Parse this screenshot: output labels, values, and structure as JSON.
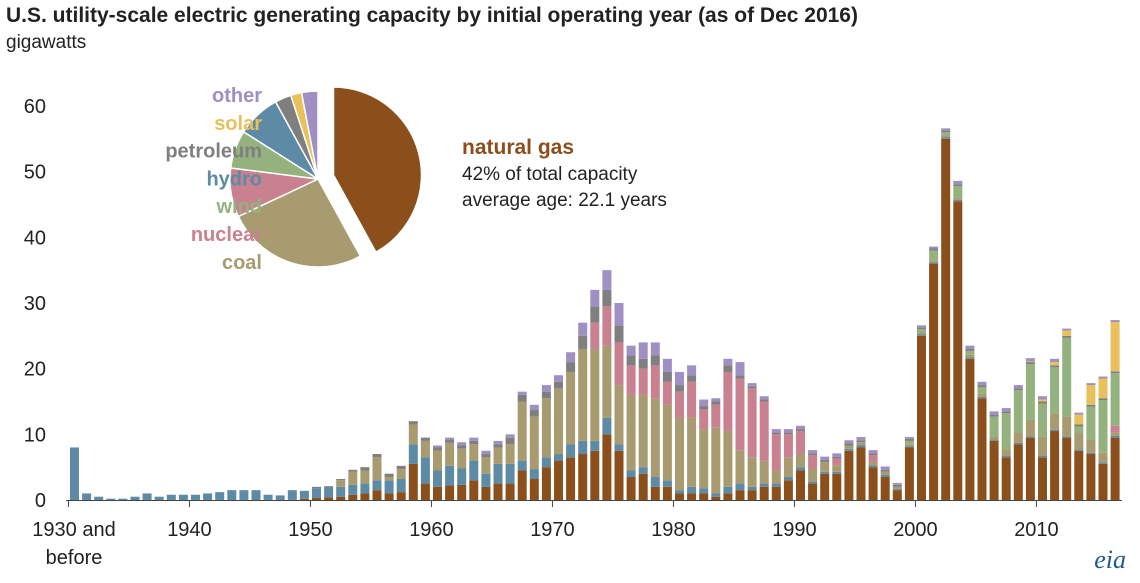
{
  "chart_data": {
    "type": "bar",
    "stacked": true,
    "title": "U.S. utility-scale electric generating capacity by initial operating year (as of Dec 2016)",
    "ylabel": "gigawatts",
    "ylim": [
      0,
      60
    ],
    "yticks": [
      0,
      10,
      20,
      30,
      40,
      50,
      60
    ],
    "xtick_labels": [
      {
        "year": 1930,
        "lines": [
          "1930 and",
          "before"
        ]
      },
      {
        "year": 1940,
        "lines": [
          "1940"
        ]
      },
      {
        "year": 1950,
        "lines": [
          "1950"
        ]
      },
      {
        "year": 1960,
        "lines": [
          "1960"
        ]
      },
      {
        "year": 1970,
        "lines": [
          "1970"
        ]
      },
      {
        "year": 1980,
        "lines": [
          "1980"
        ]
      },
      {
        "year": 1990,
        "lines": [
          "1990"
        ]
      },
      {
        "year": 2000,
        "lines": [
          "2000"
        ]
      },
      {
        "year": 2010,
        "lines": [
          "2010"
        ]
      }
    ],
    "grid": false,
    "colors": {
      "natural gas": "#8b4f1c",
      "coal": "#a89b6f",
      "nuclear": "#c9808f",
      "wind": "#93b27e",
      "hydro": "#5d8aa5",
      "petroleum": "#7f7f7f",
      "solar": "#e8c15c",
      "other": "#a08fc3"
    },
    "series_order": [
      "natural gas",
      "hydro",
      "coal",
      "nuclear",
      "wind",
      "petroleum",
      "solar",
      "other"
    ],
    "years": [
      1930,
      1931,
      1932,
      1933,
      1934,
      1935,
      1936,
      1937,
      1938,
      1939,
      1940,
      1941,
      1942,
      1943,
      1944,
      1945,
      1946,
      1947,
      1948,
      1949,
      1950,
      1951,
      1952,
      1953,
      1954,
      1955,
      1956,
      1957,
      1958,
      1959,
      1960,
      1961,
      1962,
      1963,
      1964,
      1965,
      1966,
      1967,
      1968,
      1969,
      1970,
      1971,
      1972,
      1973,
      1974,
      1975,
      1976,
      1977,
      1978,
      1979,
      1980,
      1981,
      1982,
      1983,
      1984,
      1985,
      1986,
      1987,
      1988,
      1989,
      1990,
      1991,
      1992,
      1993,
      1994,
      1995,
      1996,
      1997,
      1998,
      1999,
      2000,
      2001,
      2002,
      2003,
      2004,
      2005,
      2006,
      2007,
      2008,
      2009,
      2010,
      2011,
      2012,
      2013,
      2014,
      2015,
      2016
    ],
    "series": [
      {
        "values": [
          0,
          0,
          0,
          0,
          0,
          0,
          0,
          0,
          0,
          0,
          0,
          0,
          0,
          0,
          0,
          0,
          0,
          0,
          0,
          0.2,
          0.3,
          0.4,
          0.5,
          0.8,
          1.0,
          1.5,
          1.0,
          1.2,
          5.5,
          2.5,
          2.0,
          2.2,
          2.3,
          3.0,
          2.0,
          2.5,
          2.5,
          4.5,
          3.2,
          5.0,
          6.0,
          6.5,
          7.0,
          7.5,
          10.0,
          7.5,
          3.5,
          4.0,
          2.0,
          2.0,
          1.0,
          1.0,
          1.0,
          0.5,
          1.0,
          1.5,
          1.5,
          2.0,
          2.0,
          3.0,
          4.5,
          2.5,
          4.0,
          4.0,
          7.5,
          8.0,
          5.0,
          3.5,
          1.5,
          8.0,
          25.0,
          36.0,
          55.0,
          45.5,
          21.5,
          15.5,
          9.0,
          6.5,
          8.5,
          9.5,
          6.5,
          10.5,
          9.5,
          7.5,
          7.0,
          5.5,
          9.5
        ]
      },
      {
        "values": [
          8.0,
          1.0,
          0.5,
          0.2,
          0.2,
          0.5,
          1.0,
          0.5,
          0.8,
          0.8,
          0.8,
          1.0,
          1.2,
          1.5,
          1.5,
          1.5,
          0.8,
          0.7,
          1.5,
          1.2,
          1.5,
          1.5,
          1.5,
          1.5,
          1.5,
          1.5,
          2.0,
          2.0,
          3.0,
          4.0,
          2.5,
          3.0,
          2.5,
          3.0,
          2.0,
          3.0,
          3.0,
          1.5,
          1.5,
          1.5,
          1.0,
          2.0,
          2.0,
          1.5,
          2.5,
          1.0,
          1.0,
          1.0,
          1.5,
          1.0,
          0.5,
          1.0,
          0.8,
          0.5,
          1.0,
          1.0,
          0.5,
          0.5,
          0.5,
          0.5,
          0.5,
          0.3,
          0.3,
          0.3,
          0.3,
          0.3,
          0.3,
          0.3,
          0.2,
          0.2,
          0.2,
          0.2,
          0.2,
          0.2,
          0.2,
          0.2,
          0.2,
          0.2,
          0.2,
          0.2,
          0.2,
          0.2,
          0.2,
          0.2,
          0.2,
          0.2,
          0.3
        ]
      },
      {
        "values": [
          0,
          0,
          0,
          0,
          0,
          0,
          0,
          0,
          0,
          0,
          0,
          0,
          0,
          0,
          0,
          0,
          0,
          0,
          0,
          0,
          0,
          0,
          1.0,
          2.0,
          2.0,
          3.5,
          0.5,
          1.5,
          3.0,
          2.5,
          3.0,
          3.5,
          3.0,
          2.5,
          2.5,
          2.5,
          3.0,
          9.0,
          8.0,
          9.0,
          10.0,
          11.0,
          14.0,
          14.0,
          11.0,
          9.0,
          11.5,
          11.0,
          12.0,
          11.5,
          11.0,
          10.5,
          9.0,
          10.0,
          8.5,
          5.0,
          4.5,
          3.5,
          2.0,
          3.0,
          2.0,
          2.0,
          1.5,
          1.0,
          0.5,
          0.5,
          0.5,
          0.5,
          0.3,
          0.3,
          0.3,
          0.3,
          0.3,
          0.3,
          0.5,
          0.5,
          0.5,
          1.0,
          1.5,
          2.5,
          3.0,
          2.5,
          3.0,
          2.5,
          2.0,
          1.5,
          0.5
        ]
      },
      {
        "values": [
          0,
          0,
          0,
          0,
          0,
          0,
          0,
          0,
          0,
          0,
          0,
          0,
          0,
          0,
          0,
          0,
          0,
          0,
          0,
          0,
          0,
          0,
          0,
          0,
          0,
          0,
          0,
          0,
          0,
          0,
          0,
          0,
          0,
          0,
          0,
          0,
          0,
          0,
          0,
          0,
          0,
          0,
          0,
          4.0,
          6.0,
          6.5,
          4.5,
          4.0,
          5.0,
          3.5,
          4.0,
          5.5,
          3.0,
          3.5,
          9.0,
          11.0,
          10.5,
          9.0,
          5.5,
          3.5,
          3.5,
          2.0,
          0,
          1.0,
          0,
          0,
          1.0,
          0,
          0,
          0,
          0,
          0,
          0,
          0,
          0,
          0,
          0,
          0,
          0,
          0,
          0,
          0,
          0,
          0,
          0,
          0,
          1.0
        ]
      },
      {
        "values": [
          0,
          0,
          0,
          0,
          0,
          0,
          0,
          0,
          0,
          0,
          0,
          0,
          0,
          0,
          0,
          0,
          0,
          0,
          0,
          0,
          0,
          0,
          0,
          0,
          0,
          0,
          0,
          0,
          0,
          0,
          0,
          0,
          0,
          0,
          0,
          0,
          0,
          0,
          0,
          0,
          0,
          0,
          0,
          0,
          0,
          0,
          0,
          0,
          0,
          0,
          0,
          0,
          0,
          0,
          0,
          0,
          0,
          0,
          0,
          0,
          0,
          0,
          0,
          0,
          0,
          0,
          0,
          0,
          0,
          0.5,
          0.5,
          1.5,
          0.5,
          1.8,
          0.5,
          1.0,
          3.0,
          5.5,
          6.5,
          8.5,
          5.0,
          7.0,
          12.0,
          1.0,
          5.0,
          8.0,
          8.0
        ]
      },
      {
        "values": [
          0,
          0,
          0,
          0,
          0,
          0,
          0,
          0,
          0,
          0,
          0,
          0,
          0,
          0,
          0,
          0,
          0,
          0,
          0,
          0,
          0.2,
          0.2,
          0.2,
          0.3,
          0.5,
          0.5,
          0.5,
          0.5,
          0.5,
          0.5,
          0.5,
          0.5,
          0.5,
          0.5,
          0.5,
          0.5,
          1.0,
          1.0,
          1.0,
          1.0,
          1.0,
          1.5,
          2.0,
          2.5,
          2.5,
          2.5,
          1.5,
          1.5,
          1.5,
          1.5,
          1.0,
          1.0,
          0.5,
          0.5,
          1.0,
          0.5,
          0.3,
          0.3,
          0.3,
          0.3,
          0.3,
          0.3,
          0.3,
          0.3,
          0.3,
          0.3,
          0.3,
          0.3,
          0.3,
          0.3,
          0.3,
          0.3,
          0.3,
          0.3,
          0.3,
          0.3,
          0.3,
          0.3,
          0.3,
          0.3,
          0.3,
          0.3,
          0.3,
          0.3,
          0.3,
          0.3,
          0.3
        ]
      },
      {
        "values": [
          0,
          0,
          0,
          0,
          0,
          0,
          0,
          0,
          0,
          0,
          0,
          0,
          0,
          0,
          0,
          0,
          0,
          0,
          0,
          0,
          0,
          0,
          0,
          0,
          0,
          0,
          0,
          0,
          0,
          0,
          0,
          0,
          0,
          0,
          0,
          0,
          0,
          0,
          0,
          0,
          0,
          0,
          0,
          0,
          0,
          0,
          0,
          0,
          0,
          0,
          0,
          0,
          0,
          0,
          0,
          0,
          0,
          0,
          0,
          0,
          0,
          0,
          0,
          0,
          0,
          0,
          0,
          0,
          0,
          0,
          0,
          0,
          0,
          0,
          0,
          0,
          0,
          0,
          0,
          0.1,
          0.3,
          0.5,
          0.8,
          1.5,
          3.0,
          3.0,
          7.5
        ]
      },
      {
        "values": [
          0,
          0,
          0,
          0,
          0,
          0,
          0,
          0,
          0,
          0,
          0,
          0,
          0,
          0,
          0,
          0,
          0,
          0,
          0,
          0,
          0,
          0,
          0,
          0,
          0,
          0,
          0,
          0,
          0,
          0,
          0.3,
          0.3,
          0.5,
          0.5,
          0.5,
          0.5,
          0.5,
          0.5,
          0.8,
          1.0,
          1.0,
          1.5,
          2.0,
          2.5,
          3.0,
          3.5,
          1.5,
          2.5,
          2.0,
          2.0,
          2.0,
          1.5,
          1.0,
          0.5,
          1.0,
          2.0,
          0.5,
          0.5,
          0.5,
          0.5,
          0.5,
          0.5,
          0.5,
          0.5,
          0.5,
          0.5,
          0.5,
          0.5,
          0.3,
          0.3,
          0.3,
          0.3,
          0.3,
          0.5,
          0.5,
          0.5,
          0.5,
          0.5,
          0.5,
          0.5,
          0.5,
          0.5,
          0.3,
          0.3,
          0.3,
          0.3,
          0.3
        ]
      }
    ],
    "pie": {
      "legend": [
        "other",
        "solar",
        "petroleum",
        "hydro",
        "wind",
        "nuclear",
        "coal"
      ],
      "slices": [
        {
          "name": "natural gas",
          "value": 42
        },
        {
          "name": "coal",
          "value": 26
        },
        {
          "name": "nuclear",
          "value": 9
        },
        {
          "name": "wind",
          "value": 7
        },
        {
          "name": "hydro",
          "value": 8
        },
        {
          "name": "petroleum",
          "value": 3
        },
        {
          "name": "solar",
          "value": 2
        },
        {
          "name": "other",
          "value": 3
        }
      ],
      "exploded": "natural gas"
    },
    "callout": {
      "title": "natural gas",
      "lines": [
        "42% of total capacity",
        "average age:  22.1 years"
      ]
    }
  },
  "logo_text": "eia"
}
